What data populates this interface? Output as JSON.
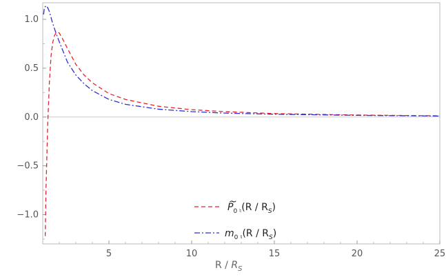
{
  "chart_data": {
    "type": "line",
    "xlabel_main": "R",
    "xlabel_sep": " / ",
    "xlabel_denom": "R",
    "xlabel_denom_sub": "S",
    "ylabel": "",
    "xlim": [
      1,
      25
    ],
    "ylim": [
      -1.3,
      1.17
    ],
    "grid": false,
    "legend_position": "bottom-center",
    "x_ticks": [
      5,
      10,
      15,
      20,
      25
    ],
    "x_tick_labels": [
      "5",
      "10",
      "15",
      "20",
      "25"
    ],
    "y_ticks": [
      1.0,
      0.5,
      0.0,
      -0.5,
      -1.0
    ],
    "y_tick_labels": [
      "1.0",
      "0.5",
      "0.0",
      "−0.5",
      "−1.0"
    ],
    "series": [
      {
        "legend_func": "P",
        "legend_sub": "0 ♮",
        "legend_arg": "(R / R",
        "legend_arg_sub": "S",
        "legend_close": ")",
        "color": "#e8202a",
        "dash": "6,4",
        "x": [
          1.15,
          1.2,
          1.3,
          1.4,
          1.5,
          1.6,
          1.7,
          1.8,
          1.9,
          2.0,
          2.2,
          2.5,
          3.0,
          3.5,
          4.0,
          5.0,
          6.0,
          8.0,
          10.0,
          12.0,
          15.0,
          20.0,
          25.0
        ],
        "y": [
          -1.22,
          -0.72,
          -0.08,
          0.35,
          0.62,
          0.76,
          0.83,
          0.86,
          0.87,
          0.86,
          0.8,
          0.7,
          0.54,
          0.43,
          0.35,
          0.24,
          0.18,
          0.11,
          0.075,
          0.055,
          0.035,
          0.02,
          0.012
        ]
      },
      {
        "legend_func": "m",
        "legend_sub": "0 ♮",
        "legend_arg": "(R / R",
        "legend_arg_sub": "S",
        "legend_close": ")",
        "color": "#2b2bd9",
        "dash": "8,3,2,3",
        "x": [
          1.05,
          1.1,
          1.2,
          1.3,
          1.4,
          1.5,
          1.6,
          1.8,
          2.0,
          2.5,
          3.0,
          3.5,
          4.0,
          5.0,
          6.0,
          8.0,
          10.0,
          12.0,
          15.0,
          20.0,
          25.0
        ],
        "y": [
          1.05,
          1.12,
          1.14,
          1.12,
          1.08,
          1.02,
          0.96,
          0.86,
          0.77,
          0.56,
          0.43,
          0.34,
          0.27,
          0.18,
          0.13,
          0.08,
          0.055,
          0.04,
          0.028,
          0.017,
          0.01
        ]
      }
    ]
  }
}
